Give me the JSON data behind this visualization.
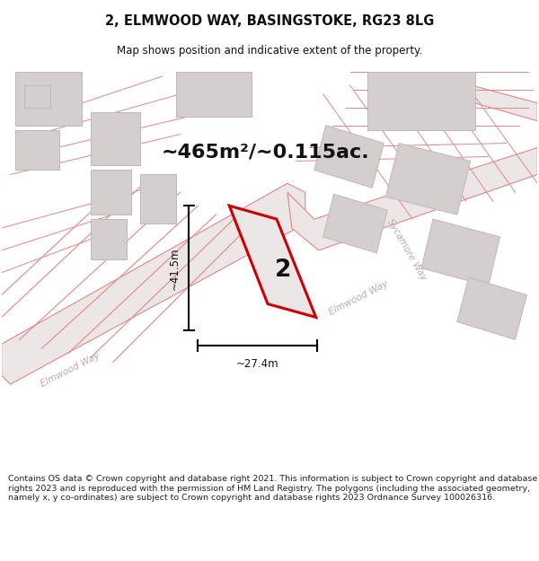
{
  "title_line1": "2, ELMWOOD WAY, BASINGSTOKE, RG23 8LG",
  "title_line2": "Map shows position and indicative extent of the property.",
  "area_text": "~465m²/~0.115ac.",
  "dim_vertical": "~41.5m",
  "dim_horizontal": "~27.4m",
  "plot_number": "2",
  "footer_text": "Contains OS data © Crown copyright and database right 2021. This information is subject to Crown copyright and database rights 2023 and is reproduced with the permission of HM Land Registry. The polygons (including the associated geometry, namely x, y co-ordinates) are subject to Crown copyright and database rights 2023 Ordnance Survey 100026316.",
  "map_bg": "#f7f2f2",
  "road_fill": "#ede6e6",
  "road_line": "#e08888",
  "bld_fill": "#d4cece",
  "bld_line": "#c0b8b8",
  "plot_fill": "#eae6e6",
  "plot_line": "#cc0000",
  "dim_color": "#111111",
  "text_color": "#111111",
  "label_color": "#bbaaaa",
  "footer_color": "#222222"
}
